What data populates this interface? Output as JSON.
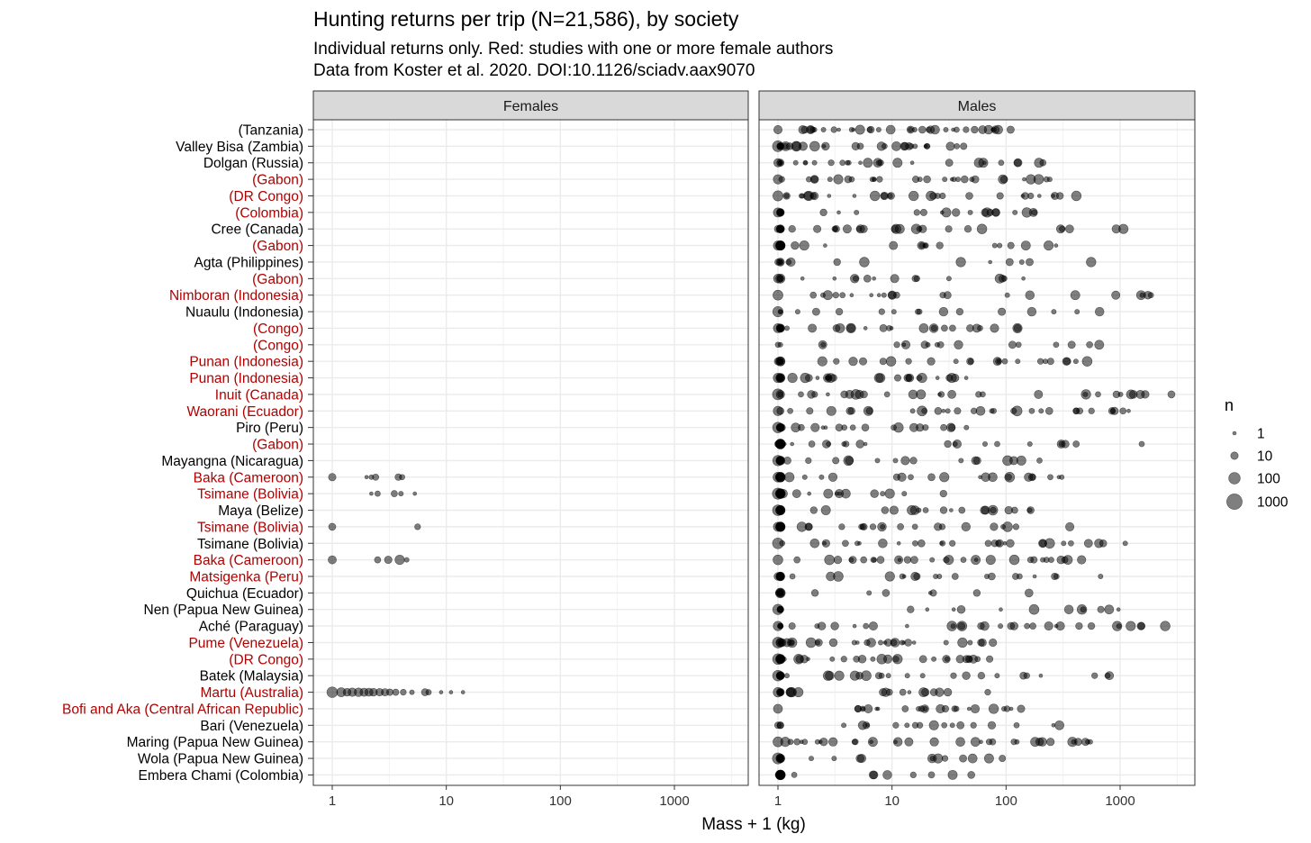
{
  "chart_data": {
    "type": "scatter",
    "title": "Hunting returns per trip (N=21,586), by society",
    "subtitle_lines": [
      "Individual returns only. Red: studies with one or more female authors",
      "Data from Koster et al. 2020. DOI:10.1126/sciadv.aax9070"
    ],
    "xlabel": "Mass + 1 (kg)",
    "ylabel": "",
    "x_scale": "log10",
    "xlim": [
      0.7,
      3800
    ],
    "x_ticks": [
      1,
      10,
      100,
      1000
    ],
    "x_tick_labels": [
      "1",
      "10",
      "100",
      "1000"
    ],
    "grid": true,
    "facets": [
      "Females",
      "Males"
    ],
    "highlight_color": "#b10000",
    "point_color": "#000000",
    "societies": [
      {
        "label": "(Tanzania)",
        "female_author": false
      },
      {
        "label": "Valley Bisa (Zambia)",
        "female_author": false
      },
      {
        "label": "Dolgan (Russia)",
        "female_author": false
      },
      {
        "label": "(Gabon)",
        "female_author": true
      },
      {
        "label": "(DR Congo)",
        "female_author": true
      },
      {
        "label": "(Colombia)",
        "female_author": true
      },
      {
        "label": "Cree (Canada)",
        "female_author": false
      },
      {
        "label": "(Gabon)",
        "female_author": true
      },
      {
        "label": "Agta (Philippines)",
        "female_author": false
      },
      {
        "label": "(Gabon)",
        "female_author": true
      },
      {
        "label": "Nimboran (Indonesia)",
        "female_author": true
      },
      {
        "label": "Nuaulu (Indonesia)",
        "female_author": false
      },
      {
        "label": "(Congo)",
        "female_author": true
      },
      {
        "label": "(Congo)",
        "female_author": true
      },
      {
        "label": "Punan (Indonesia)",
        "female_author": true
      },
      {
        "label": "Punan (Indonesia)",
        "female_author": true
      },
      {
        "label": "Inuit (Canada)",
        "female_author": true
      },
      {
        "label": "Waorani (Ecuador)",
        "female_author": true
      },
      {
        "label": "Piro (Peru)",
        "female_author": false
      },
      {
        "label": "(Gabon)",
        "female_author": true
      },
      {
        "label": "Mayangna (Nicaragua)",
        "female_author": false
      },
      {
        "label": "Baka (Cameroon)",
        "female_author": true
      },
      {
        "label": "Tsimane (Bolivia)",
        "female_author": true
      },
      {
        "label": "Maya (Belize)",
        "female_author": false
      },
      {
        "label": "Tsimane (Bolivia)",
        "female_author": true
      },
      {
        "label": "Tsimane (Bolivia)",
        "female_author": false
      },
      {
        "label": "Baka (Cameroon)",
        "female_author": true
      },
      {
        "label": "Matsigenka (Peru)",
        "female_author": true
      },
      {
        "label": "Quichua (Ecuador)",
        "female_author": false
      },
      {
        "label": "Nen (Papua New Guinea)",
        "female_author": false
      },
      {
        "label": "Aché (Paraguay)",
        "female_author": false
      },
      {
        "label": "Pume (Venezuela)",
        "female_author": true
      },
      {
        "label": "(DR Congo)",
        "female_author": true
      },
      {
        "label": "Batek (Malaysia)",
        "female_author": false
      },
      {
        "label": "Martu (Australia)",
        "female_author": true
      },
      {
        "label": "Bofi and Aka (Central African Republic)",
        "female_author": true
      },
      {
        "label": "Bari (Venezuela)",
        "female_author": false
      },
      {
        "label": "Maring (Papua New Guinea)",
        "female_author": false
      },
      {
        "label": "Wola (Papua New Guinea)",
        "female_author": false
      },
      {
        "label": "Embera Chami (Colombia)",
        "female_author": false
      }
    ],
    "series": [
      {
        "name": "Females",
        "points": [
          {
            "society_index": 21,
            "x": 1,
            "n": 10
          },
          {
            "society_index": 21,
            "x": 2.0,
            "n": 1
          },
          {
            "society_index": 21,
            "x": 2.2,
            "n": 2
          },
          {
            "society_index": 21,
            "x": 2.4,
            "n": 5
          },
          {
            "society_index": 21,
            "x": 3.8,
            "n": 6
          },
          {
            "society_index": 21,
            "x": 4.1,
            "n": 3
          },
          {
            "society_index": 22,
            "x": 2.2,
            "n": 1
          },
          {
            "society_index": 22,
            "x": 2.5,
            "n": 3
          },
          {
            "society_index": 22,
            "x": 3.5,
            "n": 5
          },
          {
            "society_index": 22,
            "x": 4.0,
            "n": 2
          },
          {
            "society_index": 22,
            "x": 5.3,
            "n": 1
          },
          {
            "society_index": 24,
            "x": 1,
            "n": 8
          },
          {
            "society_index": 24,
            "x": 5.6,
            "n": 4
          },
          {
            "society_index": 26,
            "x": 1,
            "n": 15
          },
          {
            "society_index": 26,
            "x": 2.5,
            "n": 5
          },
          {
            "society_index": 26,
            "x": 3.1,
            "n": 10
          },
          {
            "society_index": 26,
            "x": 3.9,
            "n": 30
          },
          {
            "society_index": 26,
            "x": 4.5,
            "n": 2
          },
          {
            "society_index": 34,
            "x": 1,
            "n": 60
          },
          {
            "society_index": 34,
            "x": 1.2,
            "n": 25
          },
          {
            "society_index": 34,
            "x": 1.35,
            "n": 12
          },
          {
            "society_index": 34,
            "x": 1.5,
            "n": 18
          },
          {
            "society_index": 34,
            "x": 1.7,
            "n": 20
          },
          {
            "society_index": 34,
            "x": 1.9,
            "n": 15
          },
          {
            "society_index": 34,
            "x": 2.1,
            "n": 14
          },
          {
            "society_index": 34,
            "x": 2.3,
            "n": 12
          },
          {
            "society_index": 34,
            "x": 2.6,
            "n": 10
          },
          {
            "society_index": 34,
            "x": 2.9,
            "n": 9
          },
          {
            "society_index": 34,
            "x": 3.2,
            "n": 6
          },
          {
            "society_index": 34,
            "x": 3.6,
            "n": 5
          },
          {
            "society_index": 34,
            "x": 4.2,
            "n": 4
          },
          {
            "society_index": 34,
            "x": 5,
            "n": 2
          },
          {
            "society_index": 34,
            "x": 6.5,
            "n": 8
          },
          {
            "society_index": 34,
            "x": 7,
            "n": 3
          },
          {
            "society_index": 34,
            "x": 9,
            "n": 1
          },
          {
            "society_index": 34,
            "x": 11,
            "n": 1
          },
          {
            "society_index": 34,
            "x": 14,
            "n": 1
          }
        ]
      },
      {
        "name": "Males",
        "points": []
      }
    ],
    "size_legend": {
      "title": "n",
      "breaks": [
        1,
        10,
        100,
        1000
      ],
      "labels": [
        "1",
        "10",
        "100",
        "1000"
      ]
    }
  }
}
